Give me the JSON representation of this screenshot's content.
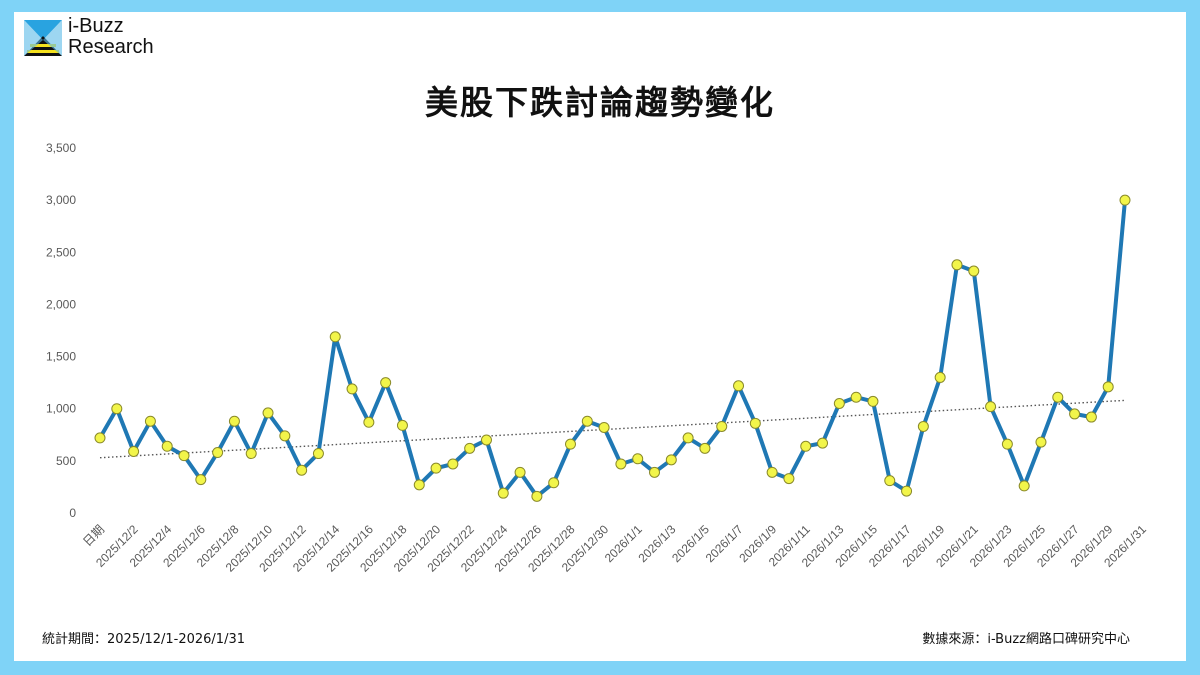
{
  "brand": {
    "line1": "i-Buzz",
    "line2": "Research"
  },
  "colors": {
    "frame": "#7fd3f7",
    "line": "#1f78b4",
    "marker_fill": "#f2f54a",
    "marker_stroke": "#8a8a2a",
    "trend": "#555555"
  },
  "chart_data": {
    "type": "line",
    "title": "美股下跌討論趨勢變化",
    "xlabel": "",
    "ylabel": "",
    "ylim": [
      0,
      3500
    ],
    "yticks": [
      "0",
      "500",
      "1,000",
      "1,500",
      "2,000",
      "2,500",
      "3,000",
      "3,500"
    ],
    "grid": false,
    "x_tick_labels": [
      "日期",
      "2025/12/2",
      "2025/12/4",
      "2025/12/6",
      "2025/12/8",
      "2025/12/10",
      "2025/12/12",
      "2025/12/14",
      "2025/12/16",
      "2025/12/18",
      "2025/12/20",
      "2025/12/22",
      "2025/12/24",
      "2025/12/26",
      "2025/12/28",
      "2025/12/30",
      "2026/1/1",
      "2026/1/3",
      "2026/1/5",
      "2026/1/7",
      "2026/1/9",
      "2026/1/11",
      "2026/1/13",
      "2026/1/15",
      "2026/1/17",
      "2026/1/19",
      "2026/1/21",
      "2026/1/23",
      "2026/1/25",
      "2026/1/27",
      "2026/1/29",
      "2026/1/31"
    ],
    "x": [
      "2025/12/1",
      "2025/12/2",
      "2025/12/3",
      "2025/12/4",
      "2025/12/5",
      "2025/12/6",
      "2025/12/7",
      "2025/12/8",
      "2025/12/9",
      "2025/12/10",
      "2025/12/11",
      "2025/12/12",
      "2025/12/13",
      "2025/12/14",
      "2025/12/15",
      "2025/12/16",
      "2025/12/17",
      "2025/12/18",
      "2025/12/19",
      "2025/12/20",
      "2025/12/21",
      "2025/12/22",
      "2025/12/23",
      "2025/12/24",
      "2025/12/25",
      "2025/12/26",
      "2025/12/27",
      "2025/12/28",
      "2025/12/29",
      "2025/12/30",
      "2025/12/31",
      "2026/1/1",
      "2026/1/2",
      "2026/1/3",
      "2026/1/4",
      "2026/1/5",
      "2026/1/6",
      "2026/1/7",
      "2026/1/8",
      "2026/1/9",
      "2026/1/10",
      "2026/1/11",
      "2026/1/12",
      "2026/1/13",
      "2026/1/14",
      "2026/1/15",
      "2026/1/16",
      "2026/1/17",
      "2026/1/18",
      "2026/1/19",
      "2026/1/20",
      "2026/1/21",
      "2026/1/22",
      "2026/1/23",
      "2026/1/24",
      "2026/1/25",
      "2026/1/26",
      "2026/1/27",
      "2026/1/28",
      "2026/1/29",
      "2026/1/30",
      "2026/1/31"
    ],
    "values": [
      720,
      1000,
      590,
      880,
      640,
      550,
      320,
      580,
      880,
      570,
      960,
      740,
      410,
      570,
      1690,
      1190,
      870,
      1250,
      840,
      270,
      430,
      470,
      620,
      700,
      190,
      390,
      160,
      290,
      660,
      880,
      820,
      470,
      520,
      390,
      510,
      720,
      620,
      830,
      1220,
      860,
      390,
      330,
      640,
      670,
      1050,
      1110,
      1070,
      310,
      210,
      830,
      1300,
      2380,
      2320,
      1020,
      660,
      260,
      680,
      1110,
      950,
      920,
      1210,
      3000
    ],
    "trendline": {
      "style": "dotted",
      "start": 530,
      "end": 1080
    }
  },
  "footer": {
    "period": "統計期間：2025/12/1-2026/1/31",
    "source": "數據來源：i-Buzz網路口碑研究中心"
  }
}
